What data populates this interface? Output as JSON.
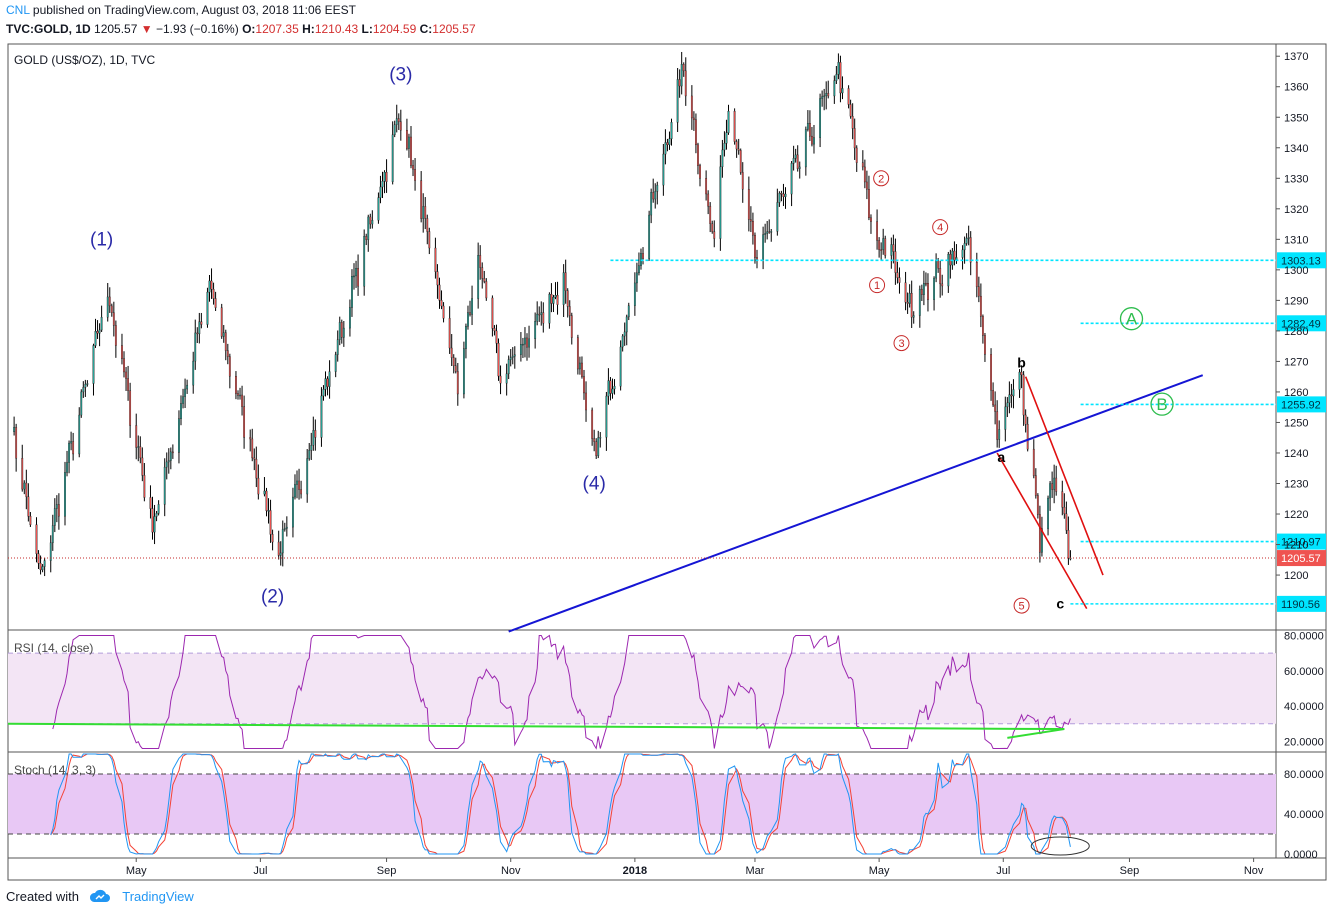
{
  "header": {
    "author": "CNL",
    "published_text": "published on TradingView.com, August 03, 2018 11:06 EEST",
    "symbol": "TVC:GOLD, 1D",
    "last": "1205.57",
    "change": "−1.93 (−0.16%)",
    "o_label": "O:",
    "o": "1207.35",
    "h_label": "H:",
    "h": "1210.43",
    "l_label": "L:",
    "l": "1204.59",
    "c_label": "C:",
    "c": "1205.57"
  },
  "chart_data": {
    "type": "candlestick",
    "title": "GOLD (US$/OZ), 1D, TVC",
    "price_axis": {
      "ylim": [
        1182,
        1374
      ],
      "ticks": [
        1200,
        1210,
        1220,
        1230,
        1240,
        1250,
        1260,
        1270,
        1280,
        1290,
        1300,
        1310,
        1320,
        1330,
        1340,
        1350,
        1360,
        1370
      ]
    },
    "time_axis": {
      "labels": [
        "May",
        "Jul",
        "Sep",
        "Nov",
        "2018",
        "Mar",
        "May",
        "Jul",
        "Sep",
        "Nov"
      ]
    },
    "price_path": [
      {
        "x": "2017-03-01",
        "y": 1248
      },
      {
        "x": "2017-03-15",
        "y": 1198
      },
      {
        "x": "2017-04-17",
        "y": 1292
      },
      {
        "x": "2017-05-09",
        "y": 1215
      },
      {
        "x": "2017-06-06",
        "y": 1294
      },
      {
        "x": "2017-07-10",
        "y": 1205
      },
      {
        "x": "2017-09-08",
        "y": 1351
      },
      {
        "x": "2017-10-06",
        "y": 1261
      },
      {
        "x": "2017-10-16",
        "y": 1304
      },
      {
        "x": "2017-10-27",
        "y": 1264
      },
      {
        "x": "2017-11-27",
        "y": 1296
      },
      {
        "x": "2017-12-12",
        "y": 1238
      },
      {
        "x": "2018-01-25",
        "y": 1366
      },
      {
        "x": "2018-02-08",
        "y": 1310
      },
      {
        "x": "2018-02-16",
        "y": 1355
      },
      {
        "x": "2018-03-01",
        "y": 1303
      },
      {
        "x": "2018-04-11",
        "y": 1365
      },
      {
        "x": "2018-05-01",
        "y": 1305
      },
      {
        "x": "2018-05-03",
        "y": 1311
      },
      {
        "x": "2018-05-15",
        "y": 1288
      },
      {
        "x": "2018-06-14",
        "y": 1309
      },
      {
        "x": "2018-06-28",
        "y": 1248
      },
      {
        "x": "2018-07-09",
        "y": 1266
      },
      {
        "x": "2018-07-19",
        "y": 1212
      },
      {
        "x": "2018-07-26",
        "y": 1231
      },
      {
        "x": "2018-08-03",
        "y": 1205.57
      }
    ],
    "last_price": 1205.57,
    "levels": [
      {
        "price": 1303.13,
        "label": "1303.13"
      },
      {
        "price": 1282.49,
        "label": "1282.49"
      },
      {
        "price": 1255.92,
        "label": "1255.92"
      },
      {
        "price": 1210.97,
        "label": "1210.97"
      },
      {
        "price": 1190.56,
        "label": "1190.56"
      }
    ],
    "last_label": "1205.57",
    "wave_labels": [
      {
        "text": "(1)",
        "color": "#2a2aa8"
      },
      {
        "text": "(2)",
        "color": "#2a2aa8"
      },
      {
        "text": "(3)",
        "color": "#2a2aa8"
      },
      {
        "text": "(4)",
        "color": "#2a2aa8"
      }
    ],
    "sub_wave_labels": [
      "1",
      "2",
      "3",
      "4",
      "5"
    ],
    "abc_labels": [
      "a",
      "b",
      "c"
    ],
    "target_labels": [
      "A",
      "B"
    ],
    "rsi": {
      "title": "RSI (14, close)",
      "ylim": [
        14,
        82
      ],
      "ticks": [
        {
          "v": 20,
          "label": "20.0000"
        },
        {
          "v": 40,
          "label": "40.0000"
        },
        {
          "v": 60,
          "label": "60.0000"
        },
        {
          "v": 80,
          "label": "80.0000"
        }
      ],
      "band": [
        30,
        70
      ],
      "color": "#9c27b0"
    },
    "stoch": {
      "title": "Stoch (14, 3, 3)",
      "ylim": [
        -4,
        100
      ],
      "ticks": [
        {
          "v": 0,
          "label": "0.0000"
        },
        {
          "v": 40,
          "label": "40.0000"
        },
        {
          "v": 80,
          "label": "80.0000"
        }
      ],
      "band": [
        20,
        80
      ],
      "k_color": "#2196f3",
      "d_color": "#f44336"
    },
    "colors": {
      "up": "#26a69a",
      "down": "#ef5350",
      "wick": "#000000",
      "trendline": "#1515d4",
      "channel": "#e01010",
      "level": "#00e5ff",
      "wave_red": "#c62828",
      "target_green": "#2ebd4e",
      "rsi_support": "#33dd33"
    }
  },
  "footer": {
    "created_with": "Created with",
    "brand": "TradingView"
  }
}
